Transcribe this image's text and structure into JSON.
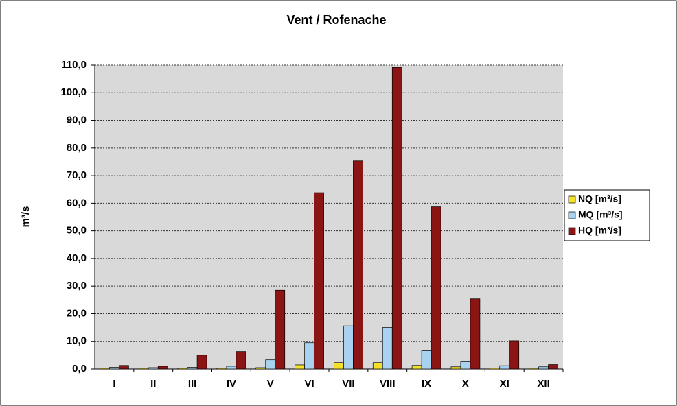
{
  "chart_data": {
    "type": "bar",
    "title": "Vent / Rofenache",
    "y_label": "m³/s",
    "categories": [
      "I",
      "II",
      "III",
      "IV",
      "V",
      "VI",
      "VII",
      "VIII",
      "IX",
      "X",
      "XI",
      "XII"
    ],
    "series": [
      {
        "name": "NQ [m³/s]",
        "color": "#f5e12a",
        "values": [
          0.3,
          0.3,
          0.3,
          0.3,
          0.5,
          1.5,
          2.3,
          2.3,
          1.3,
          0.8,
          0.4,
          0.3
        ]
      },
      {
        "name": "MQ [m³/s]",
        "color": "#a9d2f0",
        "values": [
          0.6,
          0.5,
          0.6,
          1.0,
          3.3,
          9.5,
          15.6,
          15.0,
          6.6,
          2.6,
          1.2,
          0.8
        ]
      },
      {
        "name": "HQ [m³/s]",
        "color": "#8b1414",
        "values": [
          1.3,
          1.0,
          5.0,
          6.3,
          28.5,
          63.8,
          75.3,
          109.2,
          58.7,
          25.4,
          10.2,
          1.6
        ]
      }
    ],
    "ylim": [
      0,
      110
    ],
    "yticks": [
      {
        "value": 0,
        "label": "0,0"
      },
      {
        "value": 10,
        "label": "10,0"
      },
      {
        "value": 20,
        "label": "20,0"
      },
      {
        "value": 30,
        "label": "30,0"
      },
      {
        "value": 40,
        "label": "40,0"
      },
      {
        "value": 50,
        "label": "50,0"
      },
      {
        "value": 60,
        "label": "60,0"
      },
      {
        "value": 70,
        "label": "70,0"
      },
      {
        "value": 80,
        "label": "80,0"
      },
      {
        "value": 90,
        "label": "90,0"
      },
      {
        "value": 100,
        "label": "100,0"
      },
      {
        "value": 110,
        "label": "110,0"
      }
    ],
    "grid": true,
    "legend": "right"
  }
}
